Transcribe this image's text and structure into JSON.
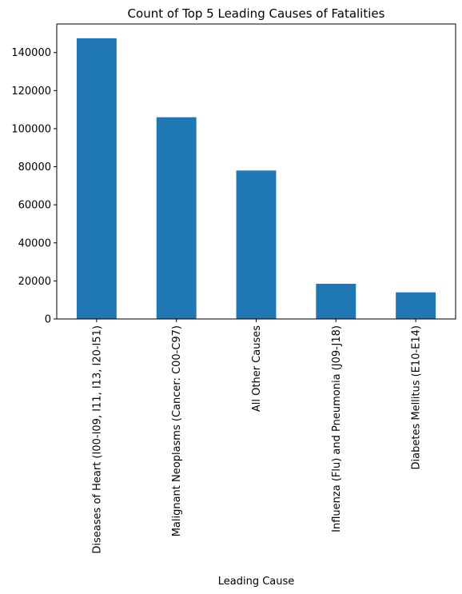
{
  "chart_data": {
    "type": "bar",
    "title": "Count of Top 5 Leading Causes of Fatalities",
    "xlabel": "Leading Cause",
    "ylabel": "",
    "categories": [
      "Diseases of Heart (I00-I09, I11, I13, I20-I51)",
      "Malignant Neoplasms (Cancer: C00-C97)",
      "All Other Causes",
      "Influenza (Flu) and Pneumonia (J09-J18)",
      "Diabetes Mellitus (E10-E14)"
    ],
    "values": [
      147500,
      106000,
      78000,
      18500,
      14000
    ],
    "ylim": [
      0,
      155000
    ],
    "yticks": [
      0,
      20000,
      40000,
      60000,
      80000,
      100000,
      120000,
      140000
    ],
    "grid": false,
    "bar_color": "#1f77b4"
  }
}
